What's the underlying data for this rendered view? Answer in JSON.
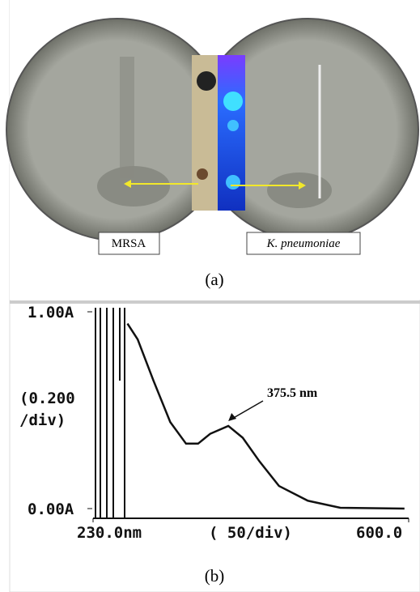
{
  "panel_a": {
    "labels": [
      "MRSA",
      "K. pneumoniae"
    ],
    "caption": "(a)"
  },
  "chart_data": {
    "type": "line",
    "x": [
      267,
      278,
      295,
      313,
      330,
      343,
      356,
      375.5,
      391,
      409,
      430,
      461,
      496,
      565
    ],
    "series": [
      {
        "color": "#111111",
        "values": [
          0.94,
          0.86,
          0.65,
          0.44,
          0.33,
          0.33,
          0.38,
          0.42,
          0.36,
          0.24,
          0.115,
          0.04,
          0.004,
          0
        ]
      }
    ],
    "xlim": [
      230,
      600
    ],
    "ylim": [
      0,
      1
    ],
    "xticks": [
      {
        "value": 230,
        "label": "230.0nm"
      },
      {
        "value": 600,
        "label": "600.0"
      }
    ],
    "yticks": [
      {
        "value": 1,
        "label": "1.00A"
      },
      {
        "value": 0,
        "label": "0.00A"
      }
    ],
    "ylabel": [
      "(0.200",
      "/div)"
    ],
    "xlabel": "( 50/div)",
    "annotation": {
      "text": "375.5 nm",
      "x": 375.5
    },
    "caption": "(b)"
  }
}
